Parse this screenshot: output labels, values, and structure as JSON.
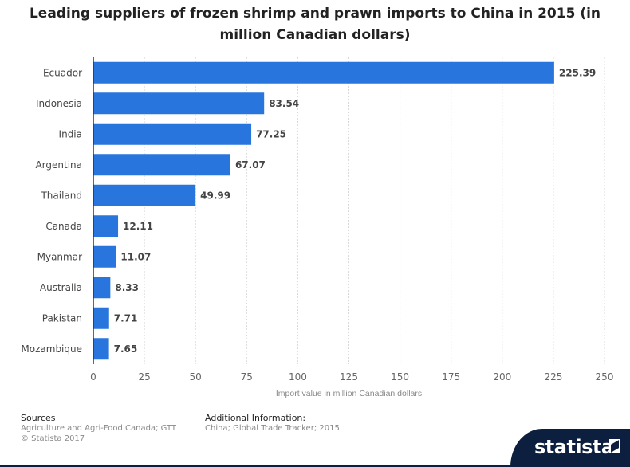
{
  "chart_data": {
    "type": "bar",
    "orientation": "horizontal",
    "title": "Leading suppliers of frozen shrimp and prawn imports to China in 2015 (in million Canadian dollars)",
    "title_lines": [
      "Leading suppliers of frozen shrimp and prawn imports to China in 2015 (in",
      "million Canadian dollars)"
    ],
    "categories": [
      "Ecuador",
      "Indonesia",
      "India",
      "Argentina",
      "Thailand",
      "Canada",
      "Myanmar",
      "Australia",
      "Pakistan",
      "Mozambique"
    ],
    "values": [
      225.39,
      83.54,
      77.25,
      67.07,
      49.99,
      12.11,
      11.07,
      8.33,
      7.71,
      7.65
    ],
    "value_labels": [
      "225.39",
      "83.54",
      "77.25",
      "67.07",
      "49.99",
      "12.11",
      "11.07",
      "8.33",
      "7.71",
      "7.65"
    ],
    "xlabel": "Import value in million Canadian dollars",
    "ylabel": "",
    "xlim": [
      0,
      250
    ],
    "xticks": [
      0,
      25,
      50,
      75,
      100,
      125,
      150,
      175,
      200,
      225,
      250
    ],
    "grid": true,
    "bar_color": "#2876dd"
  },
  "footer": {
    "sources_heading": "Sources",
    "sources_line1": "Agriculture and Agri-Food Canada; GTT",
    "sources_line2": "© Statista 2017",
    "additional_heading": "Additional Information:",
    "additional_line1": "China; Global Trade Tracker; 2015"
  },
  "brand": {
    "name": "statista",
    "icon": "statista-logo-icon",
    "color": "#0c1f3f"
  }
}
